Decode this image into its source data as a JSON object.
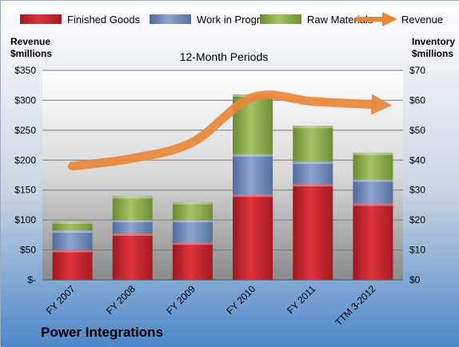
{
  "chart_data": {
    "type": "bar",
    "stacked": true,
    "subtitle": "12-Month Periods",
    "company": "Power Integrations",
    "categories": [
      "FY 2007",
      "FY 2008",
      "FY 2009",
      "FY 2010",
      "FY 2011",
      "TTM 3-2012"
    ],
    "series": [
      {
        "name": "Finished Goods",
        "axis": "right",
        "color": "#c0202a",
        "values": [
          10,
          15.5,
          12.5,
          28.5,
          32,
          25.5
        ]
      },
      {
        "name": "Work in Progress",
        "axis": "right",
        "color": "#6e86b8",
        "values": [
          6.5,
          4.5,
          7.5,
          13.5,
          7.5,
          8
        ]
      },
      {
        "name": "Raw Materials",
        "axis": "right",
        "color": "#8aa84a",
        "values": [
          3,
          8,
          6,
          20,
          12,
          9
        ]
      },
      {
        "name": "Revenue",
        "axis": "left",
        "type": "line",
        "color": "#e8873a",
        "values": [
          190,
          203,
          230,
          305,
          298,
          293
        ]
      }
    ],
    "left_axis": {
      "title_line1": "Revenue",
      "title_line2": "$millions",
      "ylim": [
        0,
        350
      ],
      "ticks": [
        "$-",
        "$50",
        "$100",
        "$150",
        "$200",
        "$250",
        "$300",
        "$350"
      ]
    },
    "right_axis": {
      "title_line1": "Inventory",
      "title_line2": "$millions",
      "ylim": [
        0,
        70
      ],
      "ticks": [
        "$0",
        "$10",
        "$20",
        "$30",
        "$40",
        "$50",
        "$60",
        "$70"
      ]
    },
    "legend_position": "top",
    "grid": true
  }
}
